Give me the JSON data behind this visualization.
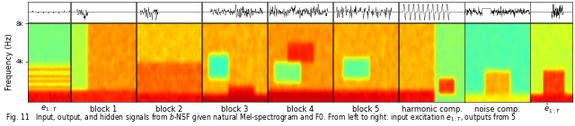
{
  "caption": "Fig. 11   Input, output, and hidden signals from $b$-NSF given natural Mel-spectrogram and F0. From left to right: input excitation $e_{1:T}$, outputs from 5",
  "ylabel": "Frequency (Hz)",
  "col_labels": [
    "e_{1:T}",
    "block 1",
    "block 2",
    "block 3",
    "block 4",
    "block 5",
    "harmonic comp.",
    "noise comp.",
    "\\hat{e}_{1:T}"
  ],
  "background_color": "#ffffff",
  "fig_width": 6.4,
  "fig_height": 1.41,
  "dpi": 100,
  "num_panels": 9,
  "caption_fontsize": 5.5,
  "label_fontsize": 6.0,
  "ylabel_fontsize": 6.0,
  "tick_fontsize": 5.0,
  "panel_widths_rel": [
    0.85,
    1.3,
    1.3,
    1.3,
    1.3,
    1.3,
    1.3,
    1.3,
    0.85
  ]
}
